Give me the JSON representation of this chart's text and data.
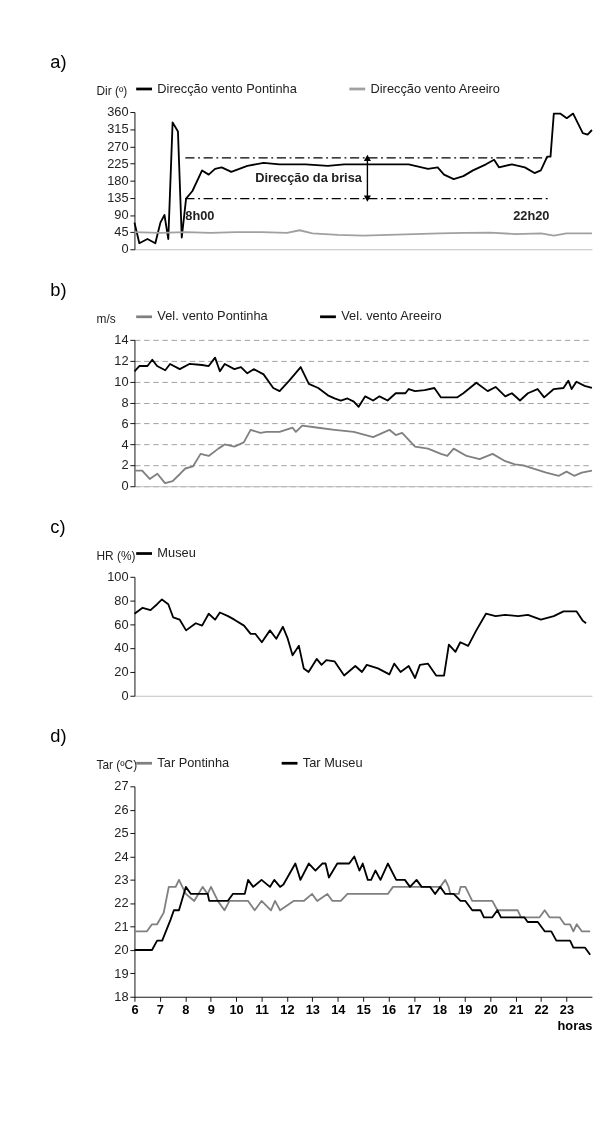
{
  "chart_data": [
    {
      "type": "line",
      "title": "a)",
      "ylabel": "Dir (º)",
      "xlim": [
        6,
        24
      ],
      "ylim": [
        0,
        360
      ],
      "yticks": [
        0,
        45,
        90,
        135,
        180,
        225,
        270,
        315,
        360
      ],
      "tick_labels": "y",
      "legend": "top",
      "series": [
        {
          "name": "Direcção vento Pontinha",
          "color": "#000000",
          "x": [
            6.0,
            6.19,
            6.51,
            6.82,
            7.02,
            7.18,
            7.33,
            7.5,
            7.71,
            7.86,
            8.03,
            8.28,
            8.66,
            8.92,
            9.17,
            9.43,
            9.81,
            10.44,
            11.08,
            11.71,
            12.73,
            13.61,
            14.25,
            15.52,
            16.79,
            17.55,
            17.93,
            18.18,
            18.56,
            18.94,
            19.32,
            19.83,
            20.15,
            20.34,
            20.85,
            21.36,
            21.74,
            21.99,
            22.24,
            22.37,
            22.5,
            22.75,
            23.01,
            23.26,
            23.64,
            23.83,
            24.0
          ],
          "values": [
            70,
            16,
            27,
            16,
            70,
            90,
            27,
            333,
            309,
            31,
            133,
            153,
            207,
            196,
            211,
            215,
            203,
            219,
            227,
            223,
            223,
            219,
            223,
            223,
            223,
            211,
            215,
            196,
            184,
            192,
            207,
            223,
            235,
            215,
            223,
            215,
            200,
            207,
            243,
            243,
            356,
            356,
            344,
            356,
            305,
            301,
            313
          ]
        },
        {
          "name": "Direcção vento Areeiro",
          "color": "#a0a0a0",
          "x": [
            6,
            7,
            8,
            9,
            10,
            11,
            12,
            12.5,
            13,
            14,
            15,
            16,
            17,
            18,
            19,
            20,
            21,
            22,
            22.5,
            23,
            24
          ],
          "values": [
            45,
            43,
            45,
            43,
            45,
            45,
            43,
            50,
            42,
            38,
            36,
            38,
            40,
            42,
            43,
            44,
            40,
            42,
            36,
            42,
            42
          ]
        },
        {
          "color": "#000000",
          "line_style": "dashed",
          "x": [
            8,
            22.33
          ],
          "values": [
            240,
            240
          ]
        },
        {
          "color": "#000000",
          "line_style": "dashed",
          "x": [
            8,
            22.33
          ],
          "values": [
            133,
            133
          ]
        }
      ],
      "annotations": [
        {
          "text": "8h00",
          "x": 8,
          "y": 133
        },
        {
          "text": "22h20",
          "x": 22.33,
          "y": 133
        },
        "Direcção da brisa"
      ]
    },
    {
      "type": "line",
      "title": "b)",
      "ylabel": "m/s",
      "xlim": [
        6,
        24
      ],
      "ylim": [
        0,
        14
      ],
      "yticks": [
        0,
        2,
        4,
        6,
        8,
        10,
        12,
        14
      ],
      "tick_labels": "y",
      "legend": "top",
      "grid": "y",
      "series": [
        {
          "name": "Vel. vento Pontinha",
          "color": "#808080",
          "x": [
            6.0,
            6.3,
            6.6,
            6.9,
            7.2,
            7.5,
            7.8,
            8.0,
            8.3,
            8.6,
            8.92,
            9.3,
            9.55,
            9.93,
            10.3,
            10.57,
            10.95,
            11.2,
            11.71,
            12.22,
            12.35,
            12.6,
            13.23,
            13.87,
            14.63,
            15.39,
            16.03,
            16.28,
            16.53,
            17.04,
            17.55,
            18.06,
            18.31,
            18.56,
            19.07,
            19.58,
            20.09,
            20.59,
            20.97,
            21.3,
            21.7,
            22.2,
            22.7,
            23.0,
            23.3,
            23.6,
            24.0
          ],
          "values": [
            1.5,
            1.5,
            0.7,
            1.2,
            0.3,
            0.5,
            1.2,
            1.7,
            1.9,
            3.1,
            2.9,
            3.6,
            4.0,
            3.8,
            4.2,
            5.4,
            5.1,
            5.2,
            5.2,
            5.6,
            5.2,
            5.8,
            5.6,
            5.4,
            5.2,
            4.7,
            5.4,
            4.9,
            5.1,
            3.8,
            3.6,
            3.1,
            2.9,
            3.6,
            2.9,
            2.6,
            3.1,
            2.4,
            2.1,
            2.0,
            1.7,
            1.3,
            1.0,
            1.4,
            1.0,
            1.3,
            1.5
          ]
        },
        {
          "name": "Vel. vento Areeiro",
          "color": "#000000",
          "x": [
            6.0,
            6.19,
            6.51,
            6.7,
            6.89,
            7.21,
            7.4,
            7.78,
            8.16,
            8.66,
            8.92,
            9.17,
            9.36,
            9.55,
            9.93,
            10.19,
            10.44,
            10.69,
            11.08,
            11.46,
            11.71,
            12.09,
            12.54,
            12.86,
            13.23,
            13.61,
            13.87,
            14.12,
            14.38,
            14.63,
            14.82,
            15.08,
            15.39,
            15.64,
            15.96,
            16.28,
            16.66,
            16.79,
            17.04,
            17.42,
            17.8,
            18.06,
            18.69,
            18.94,
            19.45,
            19.9,
            20.21,
            20.59,
            20.85,
            21.17,
            21.48,
            21.86,
            22.12,
            22.5,
            22.88,
            23.07,
            23.2,
            23.39,
            23.71,
            24.0
          ],
          "values": [
            11.0,
            11.5,
            11.5,
            12.1,
            11.5,
            11.1,
            11.7,
            11.2,
            11.7,
            11.6,
            11.5,
            12.3,
            11.0,
            11.7,
            11.2,
            11.4,
            10.8,
            11.2,
            10.7,
            9.4,
            9.1,
            10.1,
            11.4,
            9.8,
            9.4,
            8.7,
            8.4,
            8.2,
            8.4,
            8.1,
            7.6,
            8.6,
            8.2,
            8.6,
            8.2,
            8.9,
            8.9,
            9.3,
            9.1,
            9.2,
            9.4,
            8.5,
            8.5,
            8.9,
            9.9,
            9.1,
            9.5,
            8.6,
            8.9,
            8.2,
            8.9,
            9.3,
            8.5,
            9.3,
            9.4,
            10.1,
            9.3,
            10.0,
            9.6,
            9.4
          ]
        }
      ]
    },
    {
      "type": "line",
      "title": "c)",
      "ylabel": "HR (%)",
      "xlim": [
        6,
        24
      ],
      "ylim": [
        0,
        100
      ],
      "yticks": [
        0,
        20,
        40,
        60,
        80,
        100
      ],
      "tick_labels": "y",
      "legend": "top",
      "series": [
        {
          "name": "Museu",
          "color": "#000000",
          "x": [
            6.0,
            6.32,
            6.63,
            6.89,
            7.08,
            7.33,
            7.52,
            7.78,
            8.03,
            8.41,
            8.66,
            8.92,
            9.17,
            9.36,
            9.68,
            9.93,
            10.31,
            10.57,
            10.76,
            11.01,
            11.33,
            11.58,
            11.84,
            12.03,
            12.22,
            12.47,
            12.66,
            12.85,
            13.17,
            13.36,
            13.55,
            13.87,
            14.25,
            14.69,
            14.95,
            15.14,
            15.58,
            16.03,
            16.22,
            16.47,
            16.79,
            17.04,
            17.23,
            17.55,
            17.87,
            18.18,
            18.37,
            18.63,
            18.82,
            19.13,
            19.45,
            19.83,
            20.21,
            20.59,
            21.1,
            21.48,
            21.99,
            22.5,
            22.88,
            23.39,
            23.64,
            23.77
          ],
          "values": [
            69,
            74,
            72,
            77,
            81,
            77,
            66,
            64,
            55,
            61,
            59,
            69,
            64,
            70,
            67,
            64,
            59,
            52,
            52,
            45,
            55,
            48,
            58,
            48,
            34,
            42,
            23,
            20,
            31,
            26,
            30,
            29,
            17,
            25,
            20,
            26,
            23,
            18,
            27,
            20,
            25,
            15,
            26,
            27,
            17,
            17,
            43,
            37,
            45,
            42,
            55,
            69,
            67,
            68,
            67,
            68,
            64,
            67,
            71,
            71,
            63,
            61
          ]
        }
      ]
    },
    {
      "type": "line",
      "title": "d)",
      "ylabel": "Tar (ºC)",
      "xlabel": "horas",
      "xlim": [
        6,
        24
      ],
      "xticks": [
        6,
        7,
        8,
        9,
        10,
        11,
        12,
        13,
        14,
        15,
        16,
        17,
        18,
        19,
        20,
        21,
        22,
        23
      ],
      "ylim": [
        18,
        27
      ],
      "yticks": [
        18,
        19,
        20,
        21,
        22,
        23,
        24,
        25,
        26,
        27
      ],
      "legend": "top",
      "series": [
        {
          "name": "Tar Pontinha",
          "color": "#808080",
          "x": [
            6.0,
            6.49,
            6.69,
            6.89,
            7.15,
            7.35,
            7.62,
            7.75,
            8.02,
            8.35,
            8.68,
            8.88,
            9.01,
            9.28,
            9.54,
            9.74,
            10.47,
            10.73,
            11.0,
            11.37,
            11.53,
            11.73,
            12.26,
            12.66,
            12.99,
            13.19,
            13.59,
            13.79,
            14.12,
            14.38,
            15.97,
            16.17,
            18.03,
            18.23,
            18.36,
            18.43,
            18.76,
            18.83,
            19.02,
            19.29,
            20.08,
            20.28,
            21.08,
            21.21,
            21.94,
            22.14,
            22.33,
            22.73,
            22.92,
            23.14,
            23.27,
            23.4,
            23.6,
            23.93
          ],
          "values": [
            20.8,
            20.8,
            21.1,
            21.1,
            21.6,
            22.7,
            22.7,
            23.0,
            22.4,
            22.1,
            22.7,
            22.4,
            22.7,
            22.1,
            21.7,
            22.1,
            22.1,
            21.7,
            22.1,
            21.7,
            22.1,
            21.7,
            22.1,
            22.1,
            22.4,
            22.1,
            22.4,
            22.1,
            22.1,
            22.4,
            22.4,
            22.7,
            22.7,
            23.0,
            22.7,
            22.4,
            22.4,
            22.7,
            22.7,
            22.1,
            22.1,
            21.7,
            21.7,
            21.4,
            21.4,
            21.7,
            21.4,
            21.4,
            21.1,
            21.1,
            20.8,
            21.1,
            20.8,
            20.8
          ]
        },
        {
          "name": "Tar Museu",
          "color": "#000000",
          "x": [
            6.0,
            6.69,
            6.89,
            7.09,
            7.42,
            7.55,
            7.75,
            8.02,
            8.22,
            8.88,
            8.94,
            9.67,
            9.87,
            10.34,
            10.47,
            10.67,
            11.0,
            11.33,
            11.5,
            11.73,
            11.86,
            12.33,
            12.53,
            12.86,
            13.12,
            13.39,
            13.52,
            13.65,
            13.98,
            14.45,
            14.65,
            14.85,
            14.98,
            15.18,
            15.31,
            15.48,
            15.68,
            15.97,
            16.3,
            16.64,
            16.84,
            17.1,
            17.3,
            17.63,
            17.83,
            18.03,
            18.23,
            18.56,
            18.83,
            19.02,
            19.29,
            19.62,
            19.75,
            20.08,
            20.28,
            20.42,
            21.34,
            21.47,
            21.87,
            22.14,
            22.4,
            22.6,
            23.14,
            23.27,
            23.73,
            23.93
          ],
          "values": [
            20.0,
            20.0,
            20.4,
            20.4,
            21.3,
            21.7,
            21.7,
            22.7,
            22.4,
            22.4,
            22.1,
            22.1,
            22.4,
            22.4,
            23.0,
            22.7,
            23.0,
            22.7,
            23.0,
            22.7,
            22.8,
            23.7,
            23.0,
            23.7,
            23.4,
            23.7,
            23.7,
            23.1,
            23.7,
            23.7,
            24.0,
            23.4,
            23.7,
            23.0,
            23.0,
            23.4,
            23.0,
            23.7,
            23.0,
            23.0,
            22.7,
            23.0,
            22.7,
            22.7,
            22.4,
            22.7,
            22.4,
            22.4,
            22.1,
            22.1,
            21.7,
            21.7,
            21.4,
            21.4,
            21.7,
            21.4,
            21.4,
            21.2,
            21.2,
            20.8,
            20.8,
            20.4,
            20.4,
            20.1,
            20.1,
            19.8
          ]
        }
      ]
    }
  ]
}
